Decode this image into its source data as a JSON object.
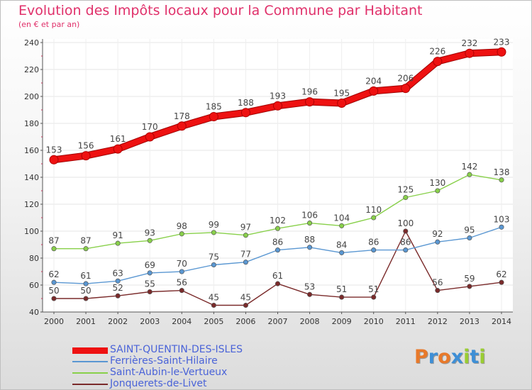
{
  "chart_data": {
    "type": "line",
    "title": "Evolution des Impôts locaux pour la Commune par Habitant",
    "subtitle": "(en € et par an)",
    "x": [
      "2000",
      "2001",
      "2002",
      "2003",
      "2004",
      "2005",
      "2006",
      "2007",
      "2008",
      "2009",
      "2010",
      "2011",
      "2012",
      "2013",
      "2014"
    ],
    "ylim": [
      40,
      240
    ],
    "yticks": [
      "40",
      "60",
      "80",
      "100",
      "120",
      "140",
      "160",
      "180",
      "200",
      "220",
      "240"
    ],
    "grid": true,
    "legend_position": "bottom-left",
    "series": [
      {
        "name": "SAINT-QUENTIN-DES-ISLES",
        "color": "#ee1111",
        "values": [
          153,
          156,
          161,
          170,
          178,
          185,
          188,
          193,
          196,
          195,
          204,
          206,
          226,
          232,
          233
        ]
      },
      {
        "name": "Ferrières-Saint-Hilaire",
        "color": "#5a97d2",
        "values": [
          62,
          61,
          63,
          69,
          70,
          75,
          77,
          86,
          88,
          84,
          86,
          86,
          92,
          95,
          103
        ]
      },
      {
        "name": "Saint-Aubin-le-Vertueux",
        "color": "#88d04a",
        "values": [
          87,
          87,
          91,
          93,
          98,
          99,
          97,
          102,
          106,
          104,
          110,
          125,
          130,
          142,
          138
        ]
      },
      {
        "name": "Jonquerets-de-Livet",
        "color": "#7a2a2a",
        "values": [
          50,
          50,
          52,
          55,
          56,
          45,
          45,
          61,
          53,
          51,
          51,
          100,
          56,
          59,
          62
        ]
      }
    ]
  },
  "logo": {
    "text": "Proxiti",
    "letters": [
      "P",
      "r",
      "o",
      "x",
      "i",
      "t",
      "i"
    ],
    "colors": [
      "#e8792a",
      "#3e8fd6",
      "#e8792a",
      "#3e8fd6",
      "#9acd32",
      "#3e8fd6",
      "#9acd32"
    ]
  }
}
